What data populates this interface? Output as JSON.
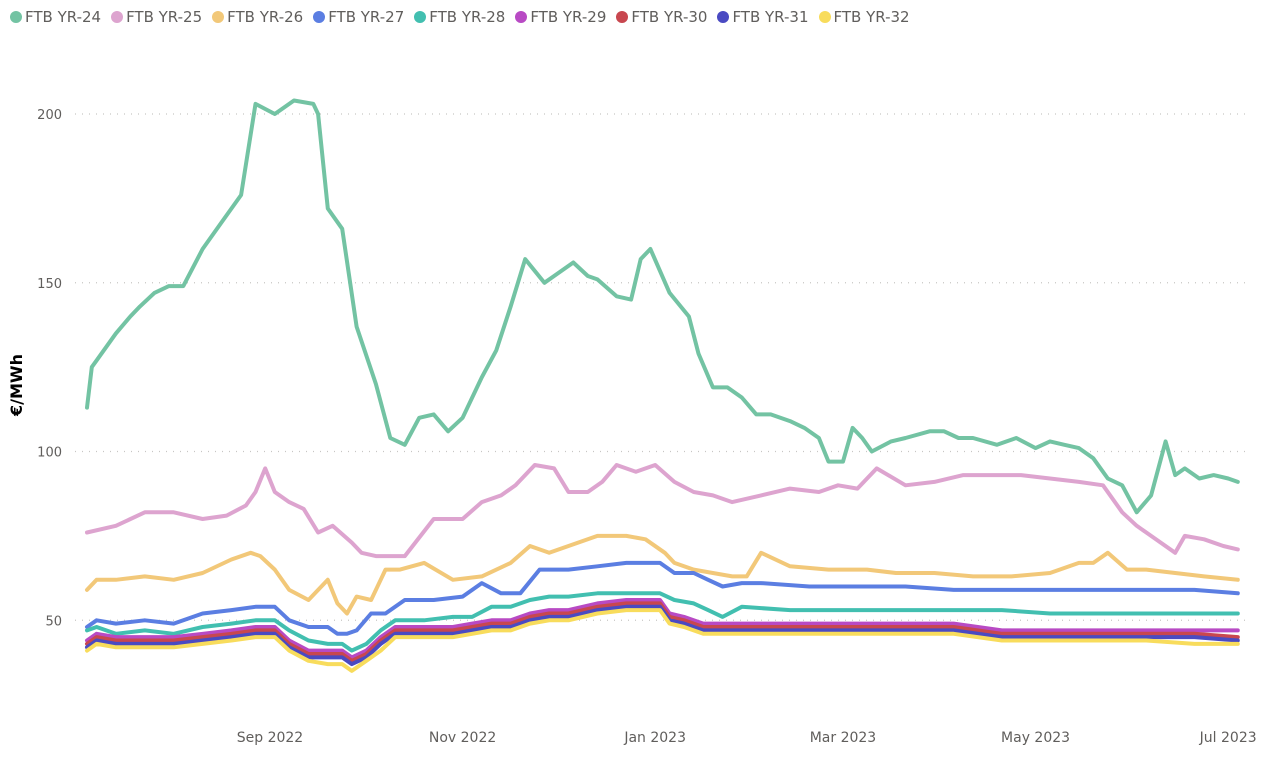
{
  "chart_data": {
    "type": "line",
    "title": "",
    "xlabel": "",
    "ylabel": "€/MWh",
    "x_unit": "months since 2022-07-01",
    "xlim": [
      0,
      12.1
    ],
    "ylim": [
      25,
      215
    ],
    "grid": true,
    "legend_position": "top-left",
    "y_ticks": [
      {
        "value": 50,
        "label": "50"
      },
      {
        "value": 100,
        "label": "100"
      },
      {
        "value": 150,
        "label": "150"
      },
      {
        "value": 200,
        "label": "200"
      }
    ],
    "x_ticks": [
      {
        "value": 1.9,
        "label": "Sep 2022"
      },
      {
        "value": 3.9,
        "label": "Nov 2022"
      },
      {
        "value": 5.9,
        "label": "Jan 2023"
      },
      {
        "value": 7.85,
        "label": "Mar 2023"
      },
      {
        "value": 9.85,
        "label": "May 2023"
      },
      {
        "value": 11.85,
        "label": "Jul 2023"
      }
    ],
    "series": [
      {
        "name": "FTB YR-24",
        "color": "#73c3a3",
        "x": [
          0,
          0.05,
          0.1,
          0.3,
          0.45,
          0.55,
          0.7,
          0.85,
          1.0,
          1.2,
          1.4,
          1.6,
          1.75,
          1.95,
          2.15,
          2.35,
          2.4,
          2.5,
          2.65,
          2.8,
          3.0,
          3.15,
          3.3,
          3.45,
          3.6,
          3.75,
          3.9,
          4.1,
          4.25,
          4.4,
          4.55,
          4.75,
          4.85,
          5.05,
          5.2,
          5.3,
          5.5,
          5.65,
          5.75,
          5.85,
          6.05,
          6.25,
          6.35,
          6.5,
          6.65,
          6.8,
          6.95,
          7.1,
          7.3,
          7.45,
          7.6,
          7.7,
          7.85,
          7.95,
          8.05,
          8.15,
          8.35,
          8.5,
          8.75,
          8.9,
          9.05,
          9.2,
          9.45,
          9.65,
          9.85,
          10.0,
          10.15,
          10.3,
          10.45,
          10.6,
          10.75,
          10.9,
          11.05,
          11.2,
          11.3,
          11.4,
          11.55,
          11.7,
          11.85,
          11.95
        ],
        "values": [
          113,
          125,
          127,
          135,
          140,
          143,
          147,
          149,
          149,
          160,
          168,
          176,
          203,
          200,
          204,
          203,
          200,
          172,
          166,
          137,
          120,
          104,
          102,
          110,
          111,
          106,
          110,
          122,
          130,
          143,
          157,
          150,
          152,
          156,
          152,
          151,
          146,
          145,
          157,
          160,
          147,
          140,
          129,
          119,
          119,
          116,
          111,
          111,
          109,
          107,
          104,
          97,
          97,
          107,
          104,
          100,
          103,
          104,
          106,
          106,
          104,
          104,
          102,
          104,
          101,
          103,
          102,
          101,
          98,
          92,
          90,
          82,
          87,
          103,
          93,
          95,
          92,
          93,
          92,
          91
        ],
        "note": "approximate"
      },
      {
        "name": "FTB YR-25",
        "color": "#dda4cf",
        "x": [
          0,
          0.3,
          0.6,
          0.9,
          1.2,
          1.45,
          1.65,
          1.75,
          1.85,
          1.95,
          2.1,
          2.25,
          2.4,
          2.55,
          2.75,
          2.85,
          3.0,
          3.3,
          3.6,
          3.9,
          4.1,
          4.3,
          4.45,
          4.65,
          4.85,
          5.0,
          5.2,
          5.35,
          5.5,
          5.7,
          5.9,
          6.1,
          6.3,
          6.5,
          6.7,
          7.0,
          7.3,
          7.6,
          7.8,
          8.0,
          8.2,
          8.5,
          8.8,
          9.1,
          9.4,
          9.7,
          10.0,
          10.3,
          10.55,
          10.75,
          10.9,
          11.1,
          11.3,
          11.4,
          11.6,
          11.8,
          11.95
        ],
        "values": [
          76,
          78,
          82,
          82,
          80,
          81,
          84,
          88,
          95,
          88,
          85,
          83,
          76,
          78,
          73,
          70,
          69,
          69,
          80,
          80,
          85,
          87,
          90,
          96,
          95,
          88,
          88,
          91,
          96,
          94,
          96,
          91,
          88,
          87,
          85,
          87,
          89,
          88,
          90,
          89,
          95,
          90,
          91,
          93,
          93,
          93,
          92,
          91,
          90,
          82,
          78,
          74,
          70,
          75,
          74,
          72,
          71
        ]
      },
      {
        "name": "FTB YR-26",
        "color": "#f2c879",
        "x": [
          0,
          0.1,
          0.3,
          0.6,
          0.9,
          1.2,
          1.5,
          1.7,
          1.8,
          1.95,
          2.1,
          2.3,
          2.5,
          2.6,
          2.7,
          2.8,
          2.95,
          3.1,
          3.25,
          3.5,
          3.8,
          4.1,
          4.4,
          4.6,
          4.8,
          5.0,
          5.3,
          5.6,
          5.8,
          6.0,
          6.1,
          6.3,
          6.5,
          6.7,
          6.85,
          7.0,
          7.3,
          7.7,
          8.1,
          8.4,
          8.8,
          9.2,
          9.6,
          10.0,
          10.3,
          10.45,
          10.6,
          10.8,
          11.0,
          11.3,
          11.6,
          11.95
        ],
        "values": [
          59,
          62,
          62,
          63,
          62,
          64,
          68,
          70,
          69,
          65,
          59,
          56,
          62,
          55,
          52,
          57,
          56,
          65,
          65,
          67,
          62,
          63,
          67,
          72,
          70,
          72,
          75,
          75,
          74,
          70,
          67,
          65,
          64,
          63,
          63,
          70,
          66,
          65,
          65,
          64,
          64,
          63,
          63,
          64,
          67,
          67,
          70,
          65,
          65,
          64,
          63,
          62
        ]
      },
      {
        "name": "FTB YR-27",
        "color": "#5b7ee2",
        "x": [
          0,
          0.1,
          0.3,
          0.6,
          0.9,
          1.2,
          1.5,
          1.75,
          1.95,
          2.1,
          2.3,
          2.5,
          2.6,
          2.7,
          2.8,
          2.95,
          3.1,
          3.3,
          3.6,
          3.9,
          4.1,
          4.3,
          4.5,
          4.7,
          5.0,
          5.3,
          5.6,
          5.8,
          5.95,
          6.1,
          6.3,
          6.45,
          6.6,
          6.8,
          7.0,
          7.5,
          8.0,
          8.5,
          9.0,
          9.5,
          10.0,
          10.5,
          10.8,
          11.0,
          11.5,
          11.95
        ],
        "values": [
          48,
          50,
          49,
          50,
          49,
          52,
          53,
          54,
          54,
          50,
          48,
          48,
          46,
          46,
          47,
          52,
          52,
          56,
          56,
          57,
          61,
          58,
          58,
          65,
          65,
          66,
          67,
          67,
          67,
          64,
          64,
          62,
          60,
          61,
          61,
          60,
          60,
          60,
          59,
          59,
          59,
          59,
          59,
          59,
          59,
          58
        ]
      },
      {
        "name": "FTB YR-28",
        "color": "#42bfb0",
        "x": [
          0,
          0.1,
          0.3,
          0.6,
          0.9,
          1.2,
          1.5,
          1.75,
          1.95,
          2.1,
          2.3,
          2.5,
          2.65,
          2.75,
          2.9,
          3.05,
          3.2,
          3.5,
          3.8,
          4.0,
          4.2,
          4.4,
          4.6,
          4.8,
          5.0,
          5.3,
          5.6,
          5.95,
          6.1,
          6.3,
          6.45,
          6.6,
          6.8,
          7.3,
          8.0,
          8.5,
          9.0,
          9.5,
          10.0,
          10.5,
          11.0,
          11.5,
          11.95
        ],
        "values": [
          47,
          48,
          46,
          47,
          46,
          48,
          49,
          50,
          50,
          47,
          44,
          43,
          43,
          41,
          43,
          47,
          50,
          50,
          51,
          51,
          54,
          54,
          56,
          57,
          57,
          58,
          58,
          58,
          56,
          55,
          53,
          51,
          54,
          53,
          53,
          53,
          53,
          53,
          52,
          52,
          52,
          52,
          52
        ]
      },
      {
        "name": "FTB YR-29",
        "color": "#b84ac4",
        "x": [
          0,
          0.1,
          0.3,
          0.6,
          0.9,
          1.2,
          1.5,
          1.75,
          1.95,
          2.1,
          2.3,
          2.5,
          2.65,
          2.75,
          2.9,
          3.05,
          3.2,
          3.5,
          3.8,
          4.0,
          4.2,
          4.4,
          4.6,
          4.8,
          5.0,
          5.3,
          5.6,
          5.95,
          6.05,
          6.2,
          6.4,
          7.0,
          7.5,
          8.0,
          8.5,
          9.0,
          9.5,
          10.0,
          10.5,
          11.0,
          11.5,
          11.95
        ],
        "values": [
          44,
          46,
          45,
          45,
          45,
          46,
          47,
          48,
          48,
          44,
          41,
          41,
          41,
          39,
          41,
          45,
          48,
          48,
          48,
          49,
          50,
          50,
          52,
          53,
          53,
          55,
          56,
          56,
          52,
          51,
          49,
          49,
          49,
          49,
          49,
          49,
          47,
          47,
          47,
          47,
          47,
          47
        ]
      },
      {
        "name": "FTB YR-30",
        "color": "#c8474f",
        "x": [
          0,
          0.1,
          0.3,
          0.6,
          0.9,
          1.2,
          1.5,
          1.75,
          1.95,
          2.1,
          2.3,
          2.5,
          2.65,
          2.75,
          2.9,
          3.05,
          3.2,
          3.5,
          3.8,
          4.0,
          4.2,
          4.4,
          4.6,
          4.8,
          5.0,
          5.3,
          5.6,
          5.95,
          6.05,
          6.2,
          6.4,
          7.0,
          7.5,
          8.0,
          8.5,
          9.0,
          9.5,
          10.0,
          10.5,
          11.0,
          11.5,
          11.95
        ],
        "values": [
          43,
          45,
          44,
          44,
          44,
          45,
          46,
          47,
          47,
          43,
          40,
          40,
          40,
          38,
          40,
          44,
          47,
          47,
          47,
          48,
          49,
          49,
          51,
          52,
          52,
          54,
          55,
          55,
          51,
          50,
          48,
          48,
          48,
          48,
          48,
          48,
          46,
          46,
          46,
          46,
          46,
          45
        ]
      },
      {
        "name": "FTB YR-31",
        "color": "#4a4ac2",
        "x": [
          0,
          0.1,
          0.3,
          0.6,
          0.9,
          1.2,
          1.5,
          1.75,
          1.95,
          2.1,
          2.3,
          2.5,
          2.65,
          2.75,
          2.9,
          3.05,
          3.2,
          3.5,
          3.8,
          4.0,
          4.2,
          4.4,
          4.6,
          4.8,
          5.0,
          5.3,
          5.6,
          5.95,
          6.05,
          6.2,
          6.4,
          7.0,
          7.5,
          8.0,
          8.5,
          9.0,
          9.5,
          10.0,
          10.5,
          11.0,
          11.5,
          11.95
        ],
        "values": [
          42,
          44,
          43,
          43,
          43,
          44,
          45,
          46,
          46,
          42,
          39,
          39,
          39,
          37,
          39,
          43,
          46,
          46,
          46,
          47,
          48,
          48,
          50,
          51,
          51,
          53,
          54,
          54,
          50,
          49,
          47,
          47,
          47,
          47,
          47,
          47,
          45,
          45,
          45,
          45,
          45,
          44
        ]
      },
      {
        "name": "FTB YR-32",
        "color": "#f8dc5c",
        "x": [
          0,
          0.1,
          0.3,
          0.6,
          0.9,
          1.2,
          1.5,
          1.75,
          1.95,
          2.1,
          2.3,
          2.5,
          2.65,
          2.75,
          2.9,
          3.05,
          3.2,
          3.5,
          3.8,
          4.0,
          4.2,
          4.4,
          4.6,
          4.8,
          5.0,
          5.3,
          5.6,
          5.95,
          6.05,
          6.2,
          6.4,
          7.0,
          7.5,
          8.0,
          8.5,
          9.0,
          9.5,
          10.0,
          10.5,
          11.0,
          11.5,
          11.95
        ],
        "values": [
          41,
          43,
          42,
          42,
          42,
          43,
          44,
          45,
          45,
          41,
          38,
          37,
          37,
          35,
          38,
          41,
          45,
          45,
          45,
          46,
          47,
          47,
          49,
          50,
          50,
          52,
          53,
          53,
          49,
          48,
          46,
          46,
          46,
          46,
          46,
          46,
          44,
          44,
          44,
          44,
          43,
          43
        ]
      }
    ]
  }
}
